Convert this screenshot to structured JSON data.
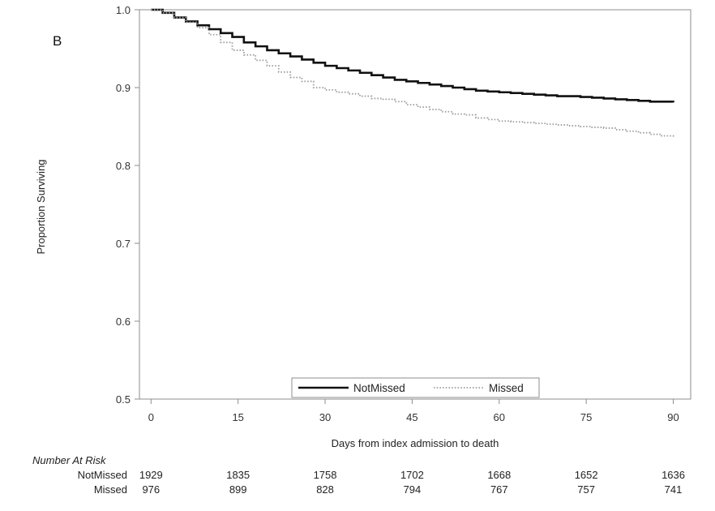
{
  "chart_data": {
    "type": "line",
    "panel_label": "B",
    "xlabel": "Days from index admission to death",
    "ylabel": "Proportion Surviving",
    "xlim": [
      -2,
      93
    ],
    "ylim": [
      0.5,
      1.0
    ],
    "xticks": [
      0,
      15,
      30,
      45,
      60,
      75,
      90
    ],
    "yticks": [
      0.5,
      0.6,
      0.7,
      0.8,
      0.9,
      1.0
    ],
    "ytick_labels": [
      "0.5",
      "0.6",
      "0.7",
      "0.8",
      "0.9",
      "1.0"
    ],
    "grid": false,
    "legend_position": "bottom-center",
    "series": [
      {
        "name": "NotMissed",
        "style": "solid",
        "color": "#111111",
        "x": [
          0,
          2,
          4,
          6,
          8,
          10,
          12,
          14,
          16,
          18,
          20,
          22,
          24,
          26,
          28,
          30,
          32,
          34,
          36,
          38,
          40,
          42,
          44,
          46,
          48,
          50,
          52,
          54,
          56,
          58,
          60,
          62,
          64,
          66,
          68,
          70,
          72,
          74,
          76,
          78,
          80,
          82,
          84,
          86,
          88,
          90
        ],
        "y": [
          1.0,
          0.996,
          0.99,
          0.985,
          0.98,
          0.975,
          0.97,
          0.965,
          0.958,
          0.953,
          0.948,
          0.944,
          0.94,
          0.936,
          0.932,
          0.928,
          0.925,
          0.922,
          0.919,
          0.916,
          0.913,
          0.91,
          0.908,
          0.906,
          0.904,
          0.902,
          0.9,
          0.898,
          0.896,
          0.895,
          0.894,
          0.893,
          0.892,
          0.891,
          0.89,
          0.889,
          0.889,
          0.888,
          0.887,
          0.886,
          0.885,
          0.884,
          0.883,
          0.882,
          0.882,
          0.881
        ]
      },
      {
        "name": "Missed",
        "style": "dotted",
        "color": "#9a9a9a",
        "x": [
          0,
          2,
          4,
          6,
          8,
          10,
          12,
          14,
          16,
          18,
          20,
          22,
          24,
          26,
          28,
          30,
          32,
          34,
          36,
          38,
          40,
          42,
          44,
          46,
          48,
          50,
          52,
          54,
          56,
          58,
          60,
          62,
          64,
          66,
          68,
          70,
          72,
          74,
          76,
          78,
          80,
          82,
          84,
          86,
          88,
          90
        ],
        "y": [
          1.0,
          0.996,
          0.99,
          0.984,
          0.977,
          0.968,
          0.958,
          0.948,
          0.942,
          0.935,
          0.928,
          0.92,
          0.913,
          0.908,
          0.9,
          0.897,
          0.894,
          0.892,
          0.889,
          0.886,
          0.885,
          0.882,
          0.878,
          0.875,
          0.872,
          0.869,
          0.866,
          0.865,
          0.861,
          0.859,
          0.857,
          0.856,
          0.855,
          0.854,
          0.853,
          0.852,
          0.851,
          0.85,
          0.849,
          0.848,
          0.846,
          0.844,
          0.842,
          0.84,
          0.838,
          0.837
        ]
      }
    ],
    "number_at_risk": {
      "title": "Number At Risk",
      "rows": [
        {
          "label": "NotMissed",
          "values": [
            1929,
            1835,
            1758,
            1702,
            1668,
            1652,
            1636
          ]
        },
        {
          "label": "Missed",
          "values": [
            976,
            899,
            828,
            794,
            767,
            757,
            741
          ]
        }
      ]
    }
  }
}
